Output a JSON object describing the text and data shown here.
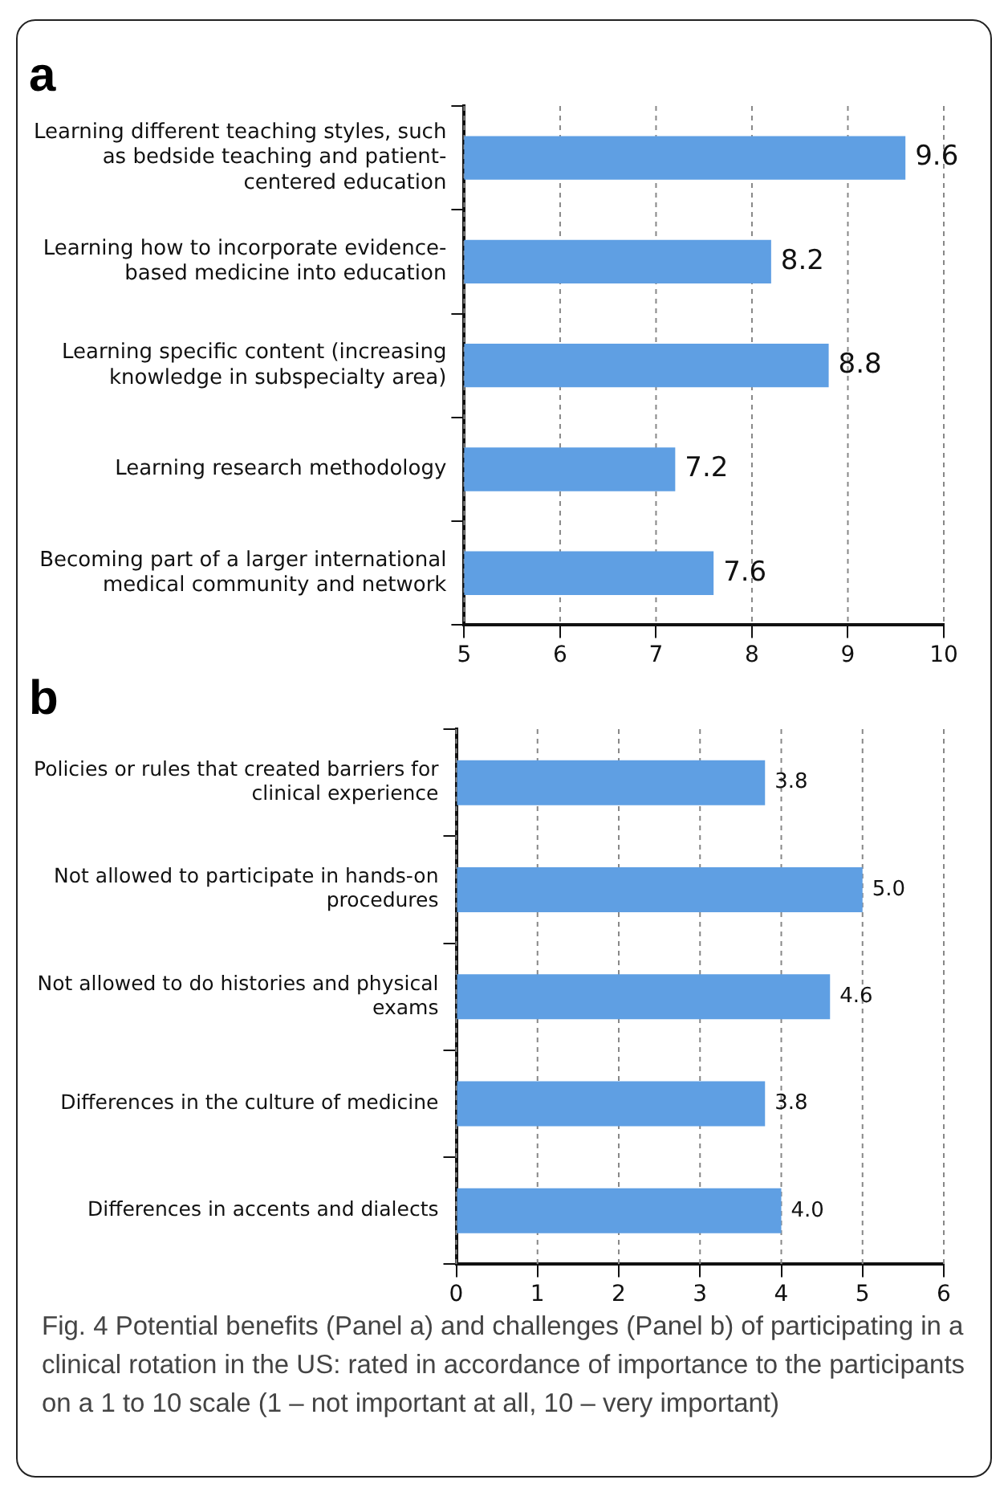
{
  "chart_data": [
    {
      "type": "bar",
      "orientation": "horizontal",
      "title": "a",
      "categories": [
        "Learning different teaching styles, such as bedside teaching and patient-centered education",
        "Learning how to incorporate evidence-based medicine into education",
        "Learning specific content (increasing knowledge in subspecialty area)",
        "Learning research methodology",
        "Becoming part of a larger international medical community and network"
      ],
      "values": [
        9.6,
        8.2,
        8.8,
        7.2,
        7.6
      ],
      "color": "#5f9fe3",
      "xlim": [
        5,
        10
      ],
      "xticks": [
        5,
        6,
        7,
        8,
        9,
        10
      ],
      "grid": "x",
      "data_labels": true,
      "legend": false
    },
    {
      "type": "bar",
      "orientation": "horizontal",
      "title": "b",
      "categories": [
        "Policies or rules that created barriers for clinical experience",
        "Not allowed to participate in hands-on procedures",
        "Not allowed to do histories and physical exams",
        "Differences in the culture of medicine",
        "Differences in accents and dialects"
      ],
      "values": [
        3.8,
        5.0,
        4.6,
        3.8,
        4.0
      ],
      "value_labels": [
        "3.8",
        "5.0",
        "4.6",
        "3.8",
        "4.0"
      ],
      "color": "#5f9fe3",
      "xlim": [
        0,
        6
      ],
      "xticks": [
        0,
        1,
        2,
        3,
        4,
        5,
        6
      ],
      "grid": "x",
      "legend": false,
      "annotations": [
        "Fig. 4 Potential benefits (Panel a) and challenges (Panel b) of participating in a clinical rotation in the US: rated in accordance of importance to the participants on a 1 to 10 scale (1 – not important at all, 10 – very important)"
      ]
    }
  ]
}
